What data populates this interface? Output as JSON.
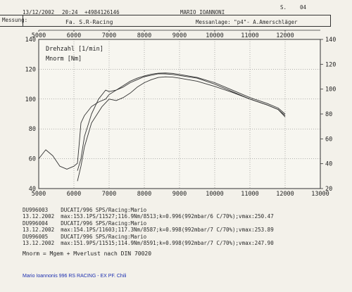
{
  "header": {
    "date": "13/12/2002",
    "time": "20:24",
    "phone": "+4984126146",
    "name": "MARIO IOANNONI",
    "page_label": "S.",
    "page_number": "04",
    "messung_label": "Messung:",
    "firm": "Fa. S.R-Racing",
    "messanlage": "Messanlage: \"p4\"- A.Amerschläger"
  },
  "chart_data": {
    "type": "line",
    "xlim": [
      5000,
      13000
    ],
    "ylim": [
      40,
      140
    ],
    "ylim_right": [
      20,
      140
    ],
    "top_ticks": [
      "5000",
      "6000",
      "7000",
      "8000",
      "9000",
      "10000",
      "11000",
      "12000"
    ],
    "bottom_ticks": [
      "5000",
      "6000",
      "7000",
      "8000",
      "9000",
      "10000",
      "11000",
      "12000",
      "13000"
    ],
    "left_ticks": [
      "140",
      "120",
      "100",
      "80",
      "60",
      "40"
    ],
    "right_ticks": [
      "140",
      "120",
      "100",
      "80",
      "60",
      "40",
      "20"
    ],
    "legend_lines": [
      "Drehzahl [1/min]",
      "Mnorm [Nm]"
    ],
    "grid": true,
    "series": [
      {
        "color": "#333333",
        "x": [
          5000,
          5200,
          5400,
          5600,
          5800,
          6000,
          6100,
          6150,
          6200,
          6300,
          6500,
          6700,
          6900,
          7000,
          7200,
          7400,
          7600,
          7800,
          8000,
          8200,
          8400,
          8600,
          8800,
          9000,
          9500,
          10000,
          10500,
          11000,
          11500,
          11800,
          12000
        ],
        "y": [
          60,
          66,
          62,
          55,
          53,
          55,
          57,
          70,
          84,
          89,
          95,
          98,
          100,
          103,
          106,
          108,
          111,
          113,
          115,
          116,
          117,
          116.9,
          116.5,
          115.8,
          114,
          110,
          105,
          100,
          96,
          93,
          88
        ]
      },
      {
        "color": "#333333",
        "x": [
          6100,
          6200,
          6300,
          6500,
          6700,
          6900,
          7000,
          7200,
          7400,
          7600,
          7800,
          8000,
          8200,
          8400,
          8600,
          8800,
          9000,
          9500,
          10000,
          10500,
          11000,
          11500,
          11800,
          12000
        ],
        "y": [
          52,
          60,
          75,
          90,
          100,
          106,
          105,
          106,
          109,
          112,
          114,
          115.5,
          116.7,
          117.3,
          117.5,
          117.2,
          116.5,
          114.5,
          111,
          106,
          101,
          97,
          94,
          90
        ]
      },
      {
        "color": "#333333",
        "x": [
          6100,
          6200,
          6300,
          6500,
          6800,
          7000,
          7200,
          7400,
          7600,
          7800,
          8000,
          8200,
          8400,
          8600,
          8800,
          9000,
          9500,
          10000,
          10500,
          11000,
          11500,
          11800,
          12000
        ],
        "y": [
          45,
          55,
          68,
          84,
          95,
          100,
          99,
          101,
          104,
          108,
          111,
          113,
          114.5,
          114.9,
          114.7,
          114,
          112,
          108.5,
          104.5,
          100,
          96,
          93,
          89
        ]
      }
    ]
  },
  "runs": [
    {
      "id": "DU996003",
      "model": "DUCATI/996 SPS/Racing:Mario",
      "date": "13.12.2002",
      "detail": "max:153.1PS/11527;116.9Nm/8513;k=0.996(992mbar/6 C/70%);vmax:250.47"
    },
    {
      "id": "DU996004",
      "model": "DUCATI/996 SPS/Racing:Mario",
      "date": "13.12.2002",
      "detail": "max:154.1PS/11603;117.3Nm/8587;k=0.998(992mbar/7 C/70%);vmax:253.89"
    },
    {
      "id": "DU996005",
      "model": "DUCATI/996 SPS/Racing:Mario",
      "date": "13.12.2002",
      "detail": "max:151.9PS/11515;114.9Nm/8591;k=0.998(992mbar/7 C/70%);vmax:247.90"
    }
  ],
  "footnote": "Mnorm = Mgem + Mverlust nach DIN 70020",
  "caption": "Mario Ioannonis 996 RS RACING - EX PF. Chili"
}
